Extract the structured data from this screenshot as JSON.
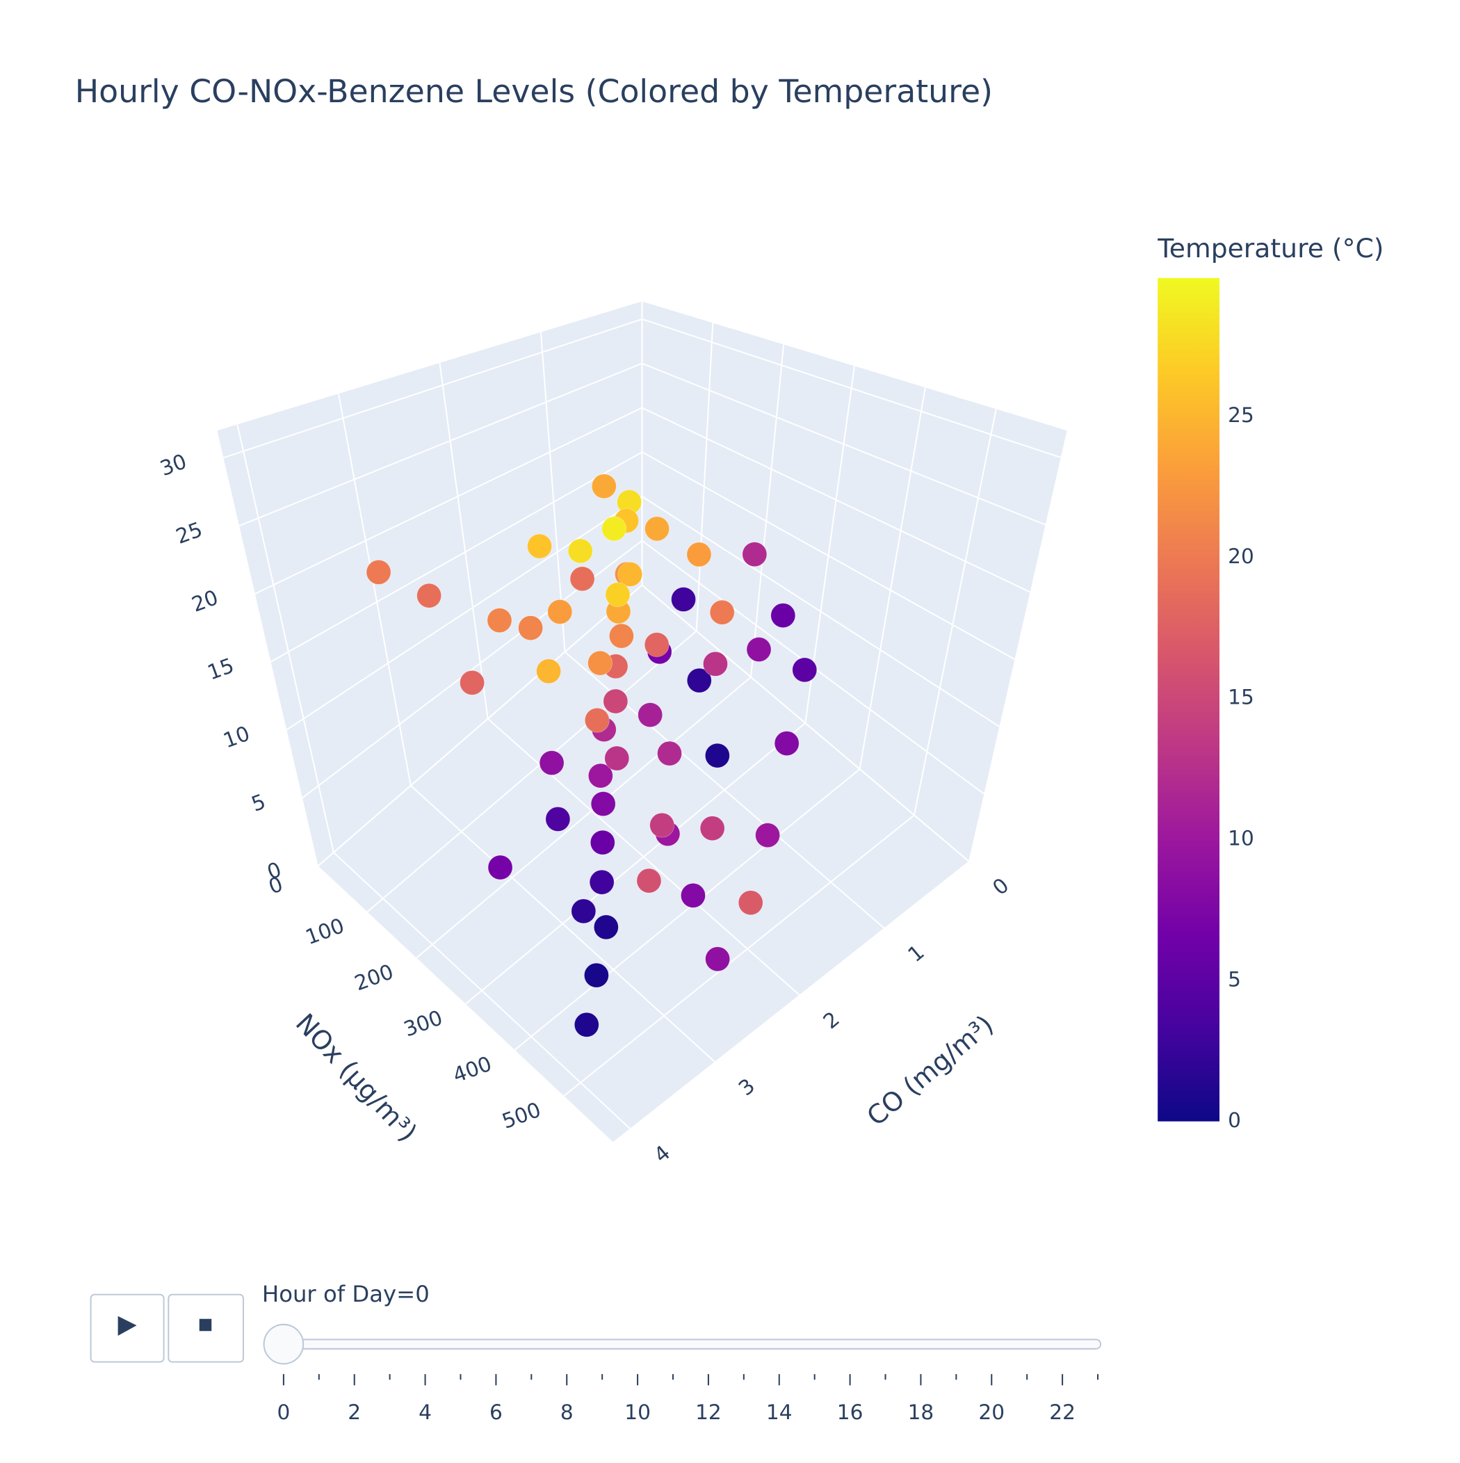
{
  "chart_data": {
    "type": "scatter3d",
    "title": "Hourly CO-NOx-Benzene Levels (Colored by Temperature)",
    "x_label": "CO (mg/m³)",
    "y_label": "NOx (µg/m³)",
    "xlim": [
      0,
      4.2
    ],
    "ylim": [
      0,
      600
    ],
    "zlim": [
      0,
      32
    ],
    "xticks": [
      0,
      1,
      2,
      3,
      4
    ],
    "yticks": [
      0,
      100,
      200,
      300,
      400,
      500
    ],
    "zticks": [
      0,
      5,
      10,
      15,
      20,
      25,
      30
    ],
    "x": [
      1.2,
      1.0,
      0.9,
      1.5,
      1.6,
      1.3,
      1.8,
      2.0,
      2.2,
      2.5,
      2.6,
      2.8,
      3.0,
      3.2,
      3.5,
      3.8,
      2.4,
      2.1,
      1.7,
      1.4,
      1.1,
      2.9,
      3.3,
      3.6,
      0.6,
      0.8,
      0.7,
      0.5,
      1.9,
      2.3,
      2.7,
      3.1,
      1.0,
      1.5,
      2.0,
      2.5,
      1.2,
      1.8,
      2.6,
      2.2,
      1.6,
      1.3,
      0.9,
      1.7,
      2.0,
      2.4,
      2.8,
      3.0,
      0.4,
      0.6,
      1.4,
      2.1,
      1.9,
      2.3,
      1.1,
      2.5,
      2.9,
      0.8,
      1.5,
      3.4
    ],
    "y": [
      150,
      120,
      110,
      180,
      200,
      170,
      220,
      250,
      260,
      300,
      320,
      350,
      380,
      420,
      450,
      480,
      280,
      240,
      210,
      160,
      100,
      200,
      150,
      120,
      180,
      250,
      300,
      350,
      330,
      380,
      420,
      360,
      400,
      450,
      500,
      520,
      300,
      280,
      230,
      190,
      260,
      220,
      200,
      150,
      130,
      170,
      260,
      300,
      240,
      320,
      340,
      360,
      410,
      440,
      260,
      330,
      140,
      140,
      120,
      250
    ],
    "z": [
      14,
      17,
      18,
      13,
      12,
      15,
      11,
      10,
      9,
      8,
      7,
      6,
      5,
      4,
      3,
      2,
      11,
      13,
      16,
      19,
      20,
      18,
      20,
      22,
      14,
      12,
      10,
      9,
      8,
      6,
      5,
      3,
      7,
      4,
      3,
      2,
      11,
      9,
      14,
      16,
      13,
      10,
      12,
      18,
      19,
      15,
      9,
      7,
      15,
      13,
      6,
      4,
      5,
      3,
      8,
      10,
      12,
      16,
      14,
      4
    ],
    "marker_color": [
      22,
      26,
      28,
      24,
      21,
      25,
      18,
      15,
      12,
      10,
      8,
      6,
      3,
      1,
      0.5,
      1,
      19,
      22,
      27,
      29,
      24,
      21,
      19,
      20,
      23,
      20,
      9,
      5,
      12,
      14,
      16,
      2,
      8,
      10,
      17,
      9,
      13,
      11,
      25,
      23,
      18,
      7,
      3,
      28,
      26,
      21,
      9,
      4,
      12,
      6,
      1,
      10,
      14,
      8,
      2,
      13,
      18,
      24,
      19,
      7
    ],
    "colorbar_title": "Temperature (°C)",
    "clim": [
      0,
      29.9
    ],
    "cticks": [
      0,
      5,
      10,
      15,
      20,
      25
    ],
    "colorscale": [
      "#0d0887",
      "#46039f",
      "#7201a8",
      "#9c179e",
      "#bd3786",
      "#d8576b",
      "#ed7953",
      "#fb9f3a",
      "#fdca26",
      "#f0f921"
    ],
    "slider": {
      "prefix": "Hour of Day=",
      "value": 0,
      "steps": [
        0,
        1,
        2,
        3,
        4,
        5,
        6,
        7,
        8,
        9,
        10,
        11,
        12,
        13,
        14,
        15,
        16,
        17,
        18,
        19,
        20,
        21,
        22,
        23
      ]
    }
  }
}
